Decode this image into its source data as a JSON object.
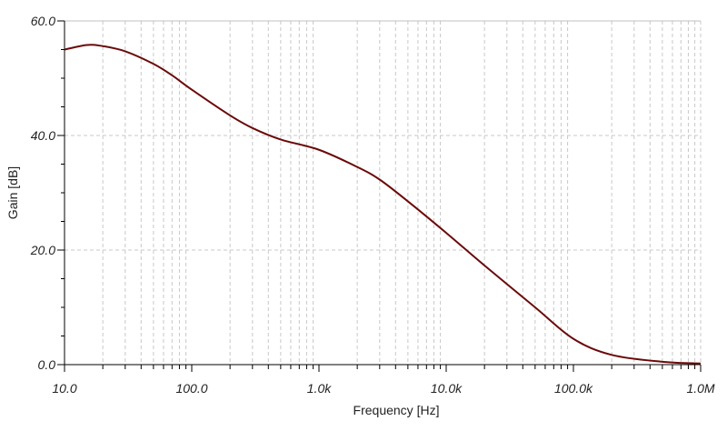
{
  "chart_data": {
    "type": "line",
    "title": "",
    "xlabel": "Frequency [Hz]",
    "ylabel": "Gain [dB]",
    "xscale": "log",
    "xlim": [
      10,
      1000000
    ],
    "ylim": [
      0,
      60
    ],
    "grid": true,
    "xticks": [
      10,
      100,
      1000,
      10000,
      100000,
      1000000
    ],
    "xtick_labels": [
      "10.0",
      "100.0",
      "1.0k",
      "10.0k",
      "100.0k",
      "1.0M"
    ],
    "yticks": [
      0,
      20,
      40,
      60
    ],
    "ytick_labels": [
      "0.0",
      "20.0",
      "40.0",
      "60.0"
    ],
    "line_color": "#6b0a0a",
    "series": [
      {
        "x": [
          10,
          15,
          20,
          30,
          50,
          70,
          100,
          200,
          300,
          500,
          1000,
          2000,
          3000,
          5000,
          10000,
          20000,
          50000,
          100000,
          200000,
          500000,
          1000000
        ],
        "y": [
          55.0,
          55.8,
          55.6,
          54.7,
          52.5,
          50.5,
          48.0,
          43.5,
          41.3,
          39.3,
          37.5,
          34.5,
          32.3,
          28.5,
          23.0,
          17.3,
          10.0,
          4.5,
          1.7,
          0.5,
          0.2
        ]
      }
    ]
  }
}
